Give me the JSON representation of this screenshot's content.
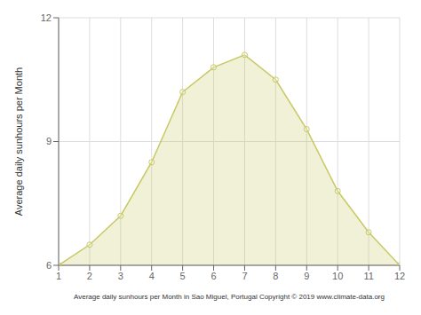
{
  "chart_data": {
    "type": "area",
    "xlabel": "Average daily sunhours per Month in Sao Miguel, Portugal Copyright © 2019 www.climate-data.org",
    "ylabel": "Average daily sunhours per Month",
    "x": [
      1,
      2,
      3,
      4,
      5,
      6,
      7,
      8,
      9,
      10,
      11,
      12
    ],
    "values": [
      6.0,
      6.5,
      7.2,
      8.5,
      10.2,
      10.8,
      11.1,
      10.5,
      9.3,
      7.8,
      6.8,
      6.0
    ],
    "color": "#C8C864",
    "marker": "circle",
    "xlim": [
      1,
      12
    ],
    "xticks": [
      1,
      2,
      3,
      4,
      5,
      6,
      7,
      8,
      9,
      10,
      11,
      12
    ],
    "ylim": [
      6,
      12
    ],
    "yticks": [
      6,
      9,
      12
    ],
    "grid": true
  }
}
